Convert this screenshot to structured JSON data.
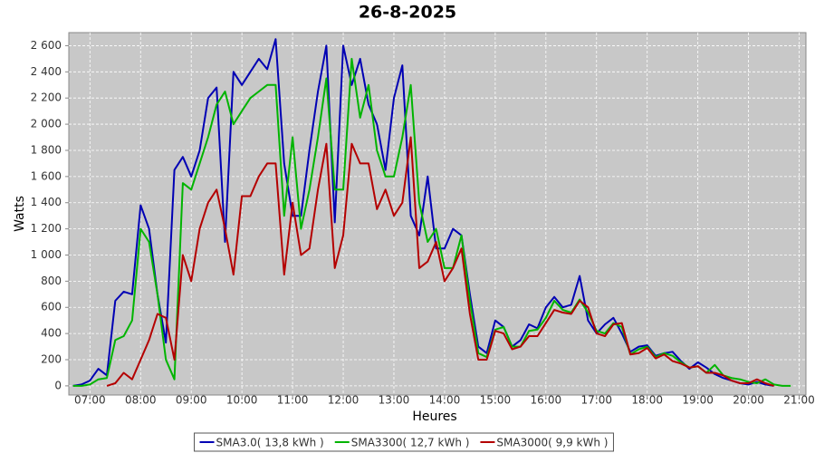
{
  "chart_data": {
    "type": "line",
    "title": "26-8-2025",
    "x_label": "Heures",
    "y_label": "Watts",
    "x": [
      "06:40",
      "06:50",
      "07:00",
      "07:10",
      "07:20",
      "07:30",
      "07:40",
      "07:50",
      "08:00",
      "08:10",
      "08:20",
      "08:30",
      "08:40",
      "08:50",
      "09:00",
      "09:10",
      "09:20",
      "09:30",
      "09:40",
      "09:50",
      "10:00",
      "10:10",
      "10:20",
      "10:30",
      "10:40",
      "10:50",
      "11:00",
      "11:10",
      "11:20",
      "11:30",
      "11:40",
      "11:50",
      "12:00",
      "12:10",
      "12:20",
      "12:30",
      "12:40",
      "12:50",
      "13:00",
      "13:10",
      "13:20",
      "13:30",
      "13:40",
      "13:50",
      "14:00",
      "14:10",
      "14:20",
      "14:30",
      "14:40",
      "14:50",
      "15:00",
      "15:10",
      "15:20",
      "15:30",
      "15:40",
      "15:50",
      "16:00",
      "16:10",
      "16:20",
      "16:30",
      "16:40",
      "16:50",
      "17:00",
      "17:10",
      "17:20",
      "17:30",
      "17:40",
      "17:50",
      "18:00",
      "18:10",
      "18:20",
      "18:30",
      "18:40",
      "18:50",
      "19:00",
      "19:10",
      "19:20",
      "19:30",
      "19:40",
      "19:50",
      "20:00",
      "20:10",
      "20:20",
      "20:30",
      "20:40",
      "20:50"
    ],
    "series": [
      {
        "name": "SMA3.0( 13,8 kWh )",
        "color": "#0000b4",
        "values": [
          0,
          10,
          40,
          130,
          80,
          650,
          720,
          700,
          1380,
          1200,
          700,
          330,
          1650,
          1750,
          1600,
          1800,
          2200,
          2280,
          1100,
          2400,
          2300,
          2400,
          2500,
          2420,
          2650,
          1700,
          1300,
          1300,
          1800,
          2250,
          2600,
          1250,
          2600,
          2300,
          2500,
          2150,
          2000,
          1650,
          2200,
          2450,
          1300,
          1150,
          1600,
          1050,
          1050,
          1200,
          1150,
          700,
          300,
          250,
          500,
          450,
          300,
          350,
          470,
          440,
          600,
          680,
          600,
          620,
          840,
          500,
          400,
          470,
          520,
          400,
          260,
          300,
          310,
          230,
          250,
          260,
          190,
          130,
          180,
          140,
          90,
          60,
          40,
          20,
          10,
          30,
          10,
          0,
          null,
          null
        ]
      },
      {
        "name": "SMA3300( 12,7 kWh )",
        "color": "#00b400",
        "values": [
          0,
          0,
          10,
          50,
          60,
          350,
          380,
          500,
          1200,
          1100,
          700,
          200,
          50,
          1550,
          1500,
          1700,
          1900,
          2150,
          2250,
          2000,
          2100,
          2200,
          2250,
          2300,
          2300,
          1300,
          1900,
          1200,
          1500,
          1900,
          2350,
          1500,
          1500,
          2500,
          2050,
          2300,
          1800,
          1600,
          1600,
          1900,
          2300,
          1400,
          1100,
          1200,
          900,
          900,
          1150,
          650,
          250,
          220,
          430,
          450,
          300,
          300,
          420,
          430,
          520,
          650,
          580,
          560,
          660,
          560,
          420,
          400,
          480,
          450,
          240,
          280,
          300,
          220,
          250,
          230,
          180,
          140,
          150,
          100,
          160,
          80,
          60,
          50,
          30,
          20,
          50,
          10,
          0,
          0
        ]
      },
      {
        "name": "SMA3000( 9,9 kWh )",
        "color": "#b40000",
        "values": [
          null,
          null,
          null,
          null,
          0,
          20,
          100,
          50,
          200,
          350,
          550,
          520,
          200,
          1000,
          800,
          1200,
          1400,
          1500,
          1200,
          850,
          1450,
          1450,
          1600,
          1700,
          1700,
          850,
          1400,
          1000,
          1050,
          1500,
          1850,
          900,
          1150,
          1850,
          1700,
          1700,
          1350,
          1500,
          1300,
          1400,
          1900,
          900,
          950,
          1100,
          800,
          900,
          1050,
          550,
          200,
          200,
          420,
          400,
          280,
          300,
          380,
          380,
          480,
          580,
          560,
          550,
          650,
          600,
          400,
          380,
          470,
          480,
          240,
          250,
          290,
          210,
          240,
          190,
          170,
          140,
          150,
          100,
          100,
          80,
          40,
          20,
          20,
          50,
          20,
          0,
          null,
          null
        ]
      }
    ],
    "xlim": [
      "06:35",
      "21:08"
    ],
    "xticks": [
      "07:00",
      "08:00",
      "09:00",
      "10:00",
      "11:00",
      "12:00",
      "13:00",
      "14:00",
      "15:00",
      "16:00",
      "17:00",
      "18:00",
      "19:00",
      "20:00",
      "21:00"
    ],
    "ylim": [
      -70,
      2700
    ],
    "yticks": [
      0,
      200,
      400,
      600,
      800,
      {
        "value": 1000,
        "label": "1 000"
      },
      {
        "value": 1200,
        "label": "1 200"
      },
      {
        "value": 1400,
        "label": "1 400"
      },
      {
        "value": 1600,
        "label": "1 600"
      },
      {
        "value": 1800,
        "label": "1 800"
      },
      {
        "value": 2000,
        "label": "2 000"
      },
      {
        "value": 2200,
        "label": "2 200"
      },
      {
        "value": 2400,
        "label": "2 400"
      },
      {
        "value": 2600,
        "label": "2 600"
      }
    ],
    "grid": true
  }
}
